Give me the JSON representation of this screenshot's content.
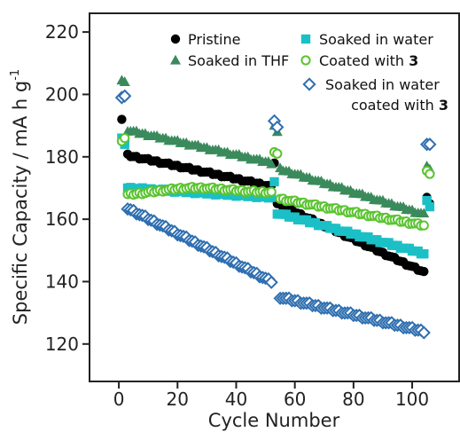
{
  "chart_data": {
    "type": "scatter",
    "xlabel": "Cycle Number",
    "ylabel": "Specific Capacity / mA h g",
    "ylabel_sup": "-1",
    "xlim": [
      -10,
      116
    ],
    "ylim": [
      108,
      226
    ],
    "xticks": [
      0,
      20,
      40,
      60,
      80,
      100
    ],
    "yticks": [
      120,
      140,
      160,
      180,
      200,
      220
    ],
    "grid": false,
    "legend": [
      {
        "name": "Pristine",
        "marker": "filled-circle",
        "color": "#000000"
      },
      {
        "name": "Soaked in water",
        "marker": "filled-square",
        "color": "#1ac0c6"
      },
      {
        "name": "Soaked in THF",
        "marker": "filled-triangle",
        "color": "#3a8a5c"
      },
      {
        "name": "Coated with ",
        "bold_suffix": "3",
        "marker": "open-circle",
        "color": "#5bc431"
      },
      {
        "name": "Soaked in water",
        "name_line2": "coated with ",
        "bold_suffix": "3",
        "marker": "open-diamond",
        "color": "#2f6fb0"
      }
    ],
    "series": [
      {
        "name": "Pristine",
        "marker": "filled-circle",
        "color": "#000000",
        "segments": [
          {
            "points": [
              [
                1,
                192
              ],
              [
                2,
                185
              ]
            ]
          },
          {
            "x_start": 3,
            "x_end": 52,
            "y_start": 180.5,
            "y_end": 170.5
          },
          {
            "points": [
              [
                53,
                178
              ]
            ]
          },
          {
            "x_start": 54,
            "x_end": 104,
            "y_start": 165,
            "y_end": 143
          },
          {
            "points": [
              [
                105,
                167
              ],
              [
                106,
                165
              ]
            ]
          }
        ]
      },
      {
        "name": "Soaked in water",
        "marker": "filled-square",
        "color": "#1ac0c6",
        "segments": [
          {
            "points": [
              [
                1,
                186
              ],
              [
                2,
                184
              ]
            ]
          },
          {
            "x_start": 3,
            "x_end": 52,
            "y_start": 170,
            "y_end": 167
          },
          {
            "points": [
              [
                53,
                172
              ]
            ]
          },
          {
            "x_start": 54,
            "x_end": 104,
            "y_start": 162,
            "y_end": 149
          },
          {
            "points": [
              [
                105,
                166
              ],
              [
                106,
                164
              ]
            ]
          }
        ]
      },
      {
        "name": "Soaked in THF",
        "marker": "filled-triangle",
        "color": "#3a8a5c",
        "segments": [
          {
            "points": [
              [
                1,
                204.5
              ],
              [
                2,
                204
              ]
            ]
          },
          {
            "x_start": 3,
            "x_end": 52,
            "y_start": 188.5,
            "y_end": 178
          },
          {
            "points": [
              [
                53,
                190
              ],
              [
                54,
                188
              ]
            ]
          },
          {
            "x_start": 55,
            "x_end": 104,
            "y_start": 176,
            "y_end": 161.5
          },
          {
            "points": [
              [
                105,
                177
              ],
              [
                106,
                176
              ]
            ]
          }
        ]
      },
      {
        "name": "Coated with 3",
        "marker": "open-circle",
        "color": "#5bc431",
        "segments": [
          {
            "points": [
              [
                1,
                185
              ],
              [
                2,
                186
              ]
            ]
          },
          {
            "x_start": 3,
            "x_end": 52,
            "y_start": 167.5,
            "y_end": 168.5,
            "peak": 170,
            "peak_x": 25
          },
          {
            "points": [
              [
                53,
                181.5
              ],
              [
                54,
                181
              ]
            ]
          },
          {
            "x_start": 55,
            "x_end": 104,
            "y_start": 166.5,
            "y_end": 158
          },
          {
            "points": [
              [
                105,
                175.5
              ],
              [
                106,
                174.5
              ]
            ]
          }
        ]
      },
      {
        "name": "Soaked in water coated with 3",
        "marker": "open-diamond",
        "color": "#2f6fb0",
        "segments": [
          {
            "points": [
              [
                1,
                199
              ],
              [
                2,
                199.5
              ]
            ]
          },
          {
            "x_start": 3,
            "x_end": 52,
            "y_start": 163.5,
            "y_end": 140
          },
          {
            "points": [
              [
                53,
                191.5
              ],
              [
                54,
                189.5
              ]
            ]
          },
          {
            "x_start": 55,
            "x_end": 104,
            "y_start": 135,
            "y_end": 124
          },
          {
            "points": [
              [
                105,
                184
              ],
              [
                106,
                184
              ]
            ]
          }
        ]
      }
    ]
  }
}
